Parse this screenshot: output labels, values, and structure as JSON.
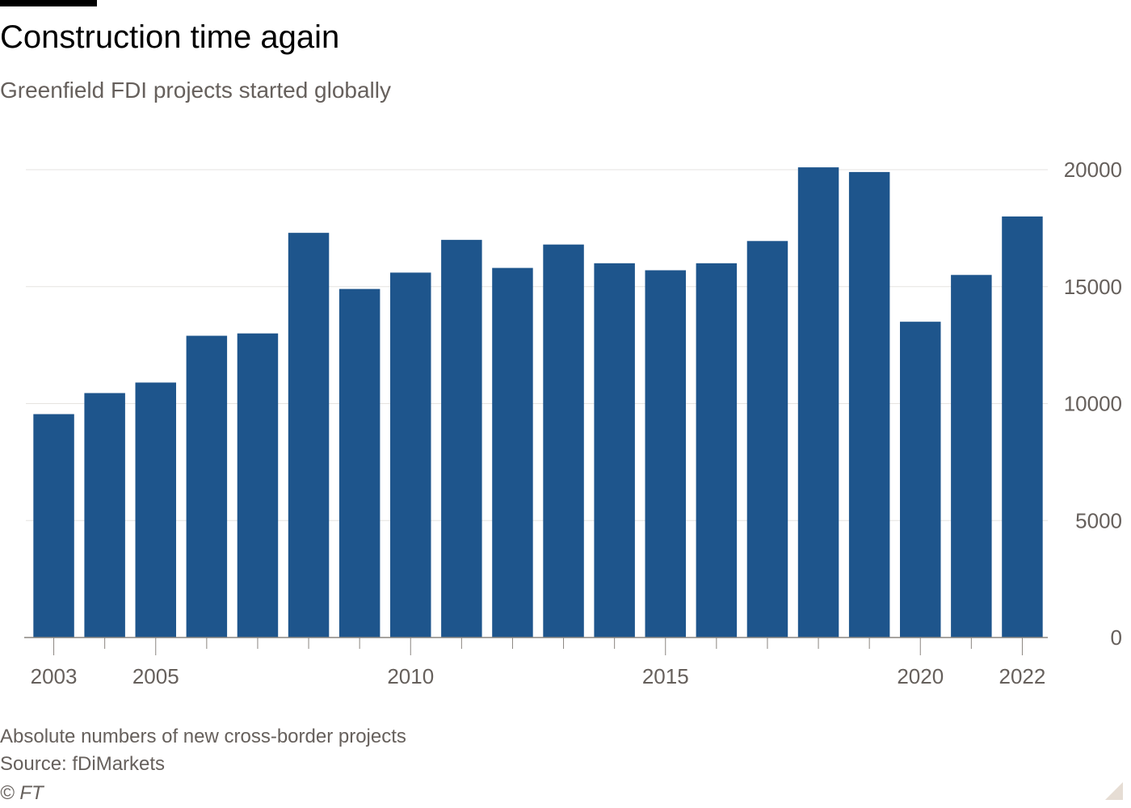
{
  "header": {
    "title": "Construction time again",
    "subtitle": "Greenfield FDI projects started globally"
  },
  "footer": {
    "note": "Absolute numbers of new cross-border projects",
    "source": "Source: fDiMarkets",
    "copyright": "© FT"
  },
  "colors": {
    "bar": "#1e558c",
    "grid": "#e6e3e0",
    "baseline": "#8a8580",
    "text": "#66605c"
  },
  "chart_data": {
    "type": "bar",
    "title": "Construction time again",
    "subtitle": "Greenfield FDI projects started globally",
    "xlabel": "",
    "ylabel": "",
    "categories": [
      2003,
      2004,
      2005,
      2006,
      2007,
      2008,
      2009,
      2010,
      2011,
      2012,
      2013,
      2014,
      2015,
      2016,
      2017,
      2018,
      2019,
      2020,
      2021,
      2022
    ],
    "values": [
      9550,
      10450,
      10900,
      12900,
      13000,
      17300,
      14900,
      15600,
      17000,
      15800,
      16800,
      16000,
      15700,
      16000,
      16950,
      20100,
      19900,
      13500,
      15500,
      18000
    ],
    "x_tick_labels": [
      "2003",
      "2005",
      "2010",
      "2015",
      "2020",
      "2022"
    ],
    "y_ticks": [
      0,
      5000,
      10000,
      15000,
      20000
    ],
    "ylim": [
      0,
      20000
    ],
    "y_axis_position": "right",
    "grid": true,
    "legend": "none"
  }
}
